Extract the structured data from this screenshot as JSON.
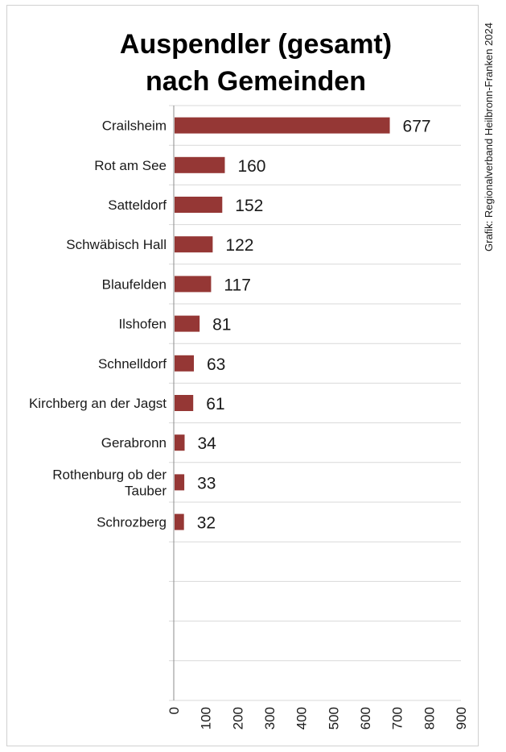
{
  "chart_data": {
    "type": "bar",
    "orientation": "horizontal",
    "title_lines": [
      "Auspendler (gesamt)",
      "nach Gemeinden"
    ],
    "categories": [
      "Crailsheim",
      "Rot am See",
      "Satteldorf",
      "Schwäbisch Hall",
      "Blaufelden",
      "Ilshofen",
      "Schnelldorf",
      "Kirchberg an der Jagst",
      "Gerabronn",
      "Rothenburg ob der Tauber",
      "Schrozberg"
    ],
    "category_label_lines": [
      [
        "Crailsheim"
      ],
      [
        "Rot am See"
      ],
      [
        "Satteldorf"
      ],
      [
        "Schwäbisch Hall"
      ],
      [
        "Blaufelden"
      ],
      [
        "Ilshofen"
      ],
      [
        "Schnelldorf"
      ],
      [
        "Kirchberg an der Jagst"
      ],
      [
        "Gerabronn"
      ],
      [
        "Rothenburg ob der",
        "Tauber"
      ],
      [
        "Schrozberg"
      ]
    ],
    "values": [
      677,
      160,
      152,
      122,
      117,
      81,
      63,
      61,
      34,
      33,
      32
    ],
    "xlim": [
      0,
      900
    ],
    "x_ticks": [
      "0",
      "100",
      "200",
      "300",
      "400",
      "500",
      "600",
      "700",
      "800",
      "900"
    ],
    "slot_count": 15,
    "grid": true,
    "bar_color": "#953735",
    "credit": "Grafik: Regionalverband Heilbronn-Franken 2024"
  }
}
